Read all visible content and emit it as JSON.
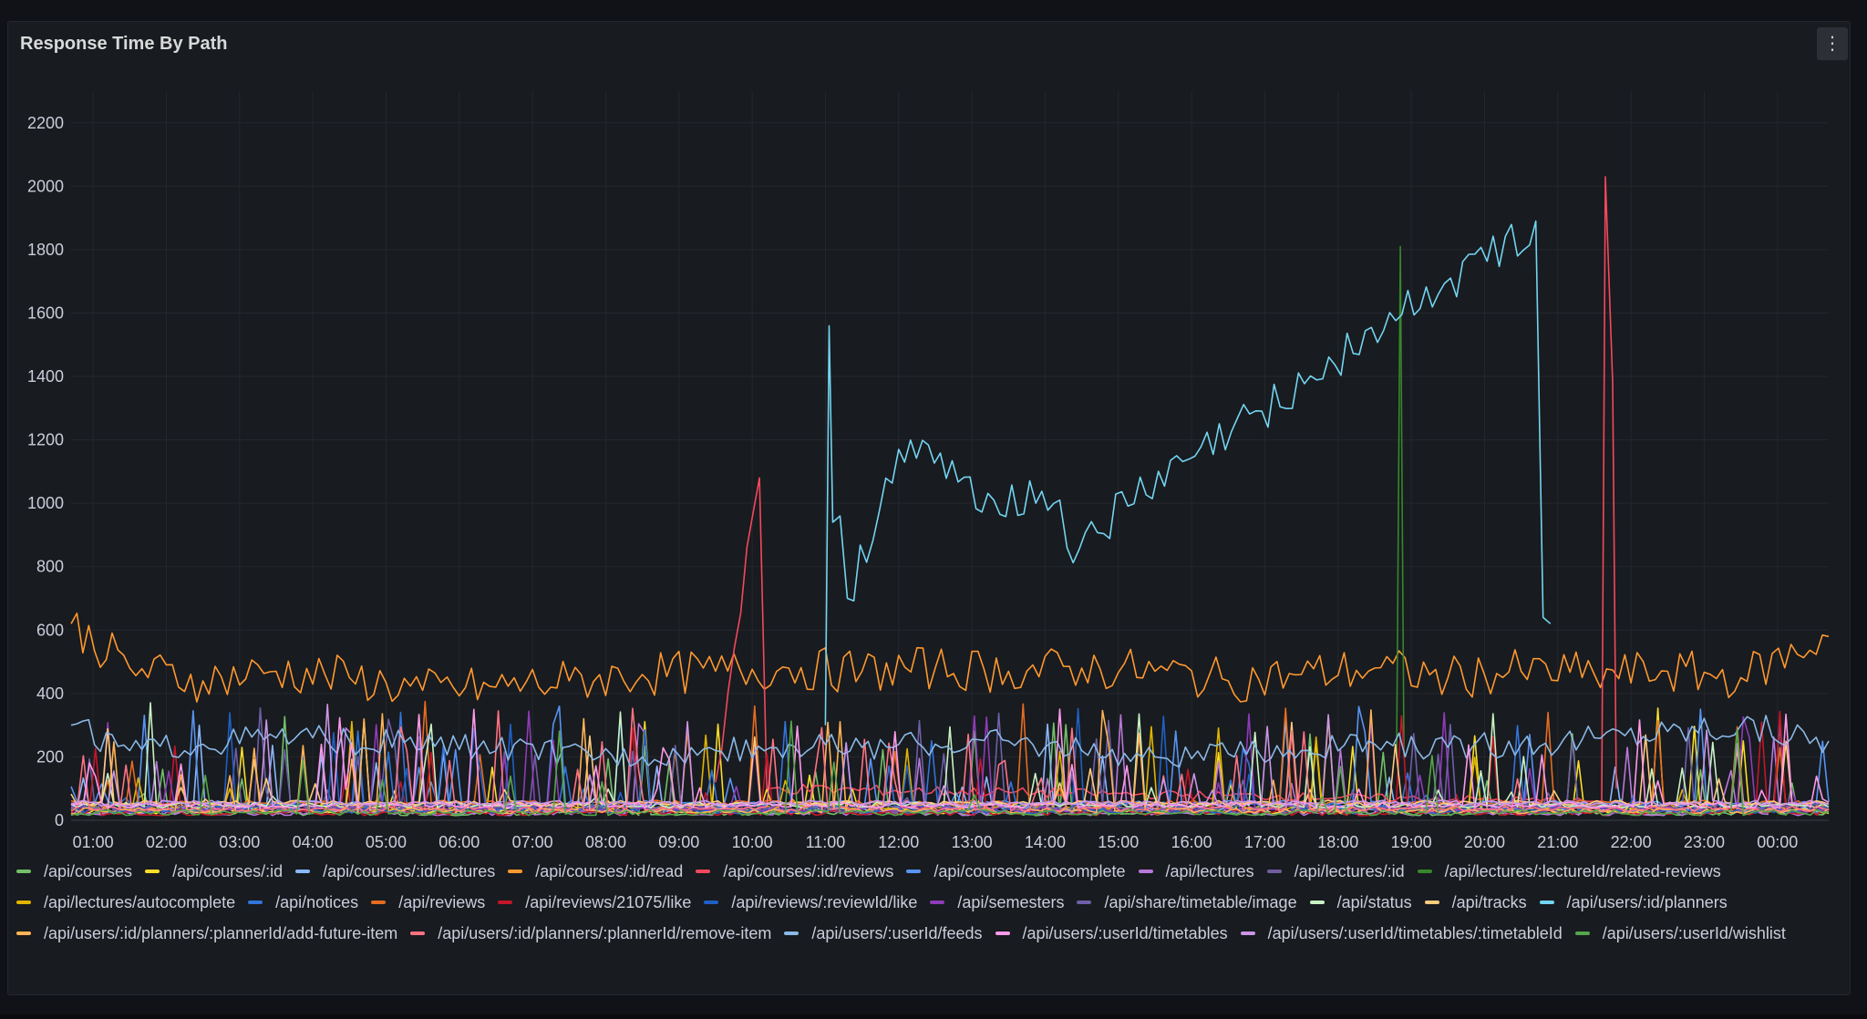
{
  "panel": {
    "title": "Response Time By Path",
    "menu_icon": "kebab-menu-icon",
    "menu_glyph": "⋮"
  },
  "colors": {
    "background": "#111217",
    "panel": "#181b1f",
    "grid": "#24272e",
    "text": "#ccccdc"
  },
  "chart_data": {
    "type": "line",
    "title": "Response Time By Path",
    "xlabel": "",
    "ylabel": "",
    "ylim": [
      0,
      2300
    ],
    "yticks": [
      0,
      200,
      400,
      600,
      800,
      1000,
      1200,
      1400,
      1600,
      1800,
      2000,
      2200
    ],
    "x_range_hours": [
      0.7,
      24.7
    ],
    "xticks": [
      "01:00",
      "02:00",
      "03:00",
      "04:00",
      "05:00",
      "06:00",
      "07:00",
      "08:00",
      "09:00",
      "10:00",
      "11:00",
      "12:00",
      "13:00",
      "14:00",
      "15:00",
      "16:00",
      "17:00",
      "18:00",
      "19:00",
      "20:00",
      "21:00",
      "22:00",
      "23:00",
      "00:00"
    ],
    "grid": true,
    "legend_position": "bottom",
    "series": [
      {
        "name": "/api/courses",
        "color": "#73bf69"
      },
      {
        "name": "/api/courses/:id",
        "color": "#fade2a"
      },
      {
        "name": "/api/courses/:id/lectures",
        "color": "#8ab8ff"
      },
      {
        "name": "/api/courses/:id/read",
        "color": "#ff9830",
        "values": [
          [
            0.7,
            620
          ],
          [
            1.5,
            480
          ],
          [
            2.5,
            440
          ],
          [
            3.5,
            470
          ],
          [
            4.5,
            450
          ],
          [
            5.5,
            410
          ],
          [
            6.5,
            420
          ],
          [
            7.5,
            440
          ],
          [
            8.5,
            460
          ],
          [
            9.5,
            470
          ],
          [
            10.5,
            480
          ],
          [
            11.5,
            470
          ],
          [
            12.5,
            480
          ],
          [
            13.5,
            470
          ],
          [
            14.5,
            480
          ],
          [
            15.5,
            470
          ],
          [
            16.5,
            440
          ],
          [
            17.5,
            460
          ],
          [
            18.5,
            480
          ],
          [
            19.5,
            450
          ],
          [
            20.5,
            470
          ],
          [
            21.5,
            460
          ],
          [
            22.5,
            470
          ],
          [
            23.5,
            450
          ],
          [
            24.7,
            580
          ]
        ]
      },
      {
        "name": "/api/courses/:id/reviews",
        "color": "#f2495c",
        "values": [
          [
            9.5,
            120
          ],
          [
            10.1,
            1080
          ],
          [
            10.2,
            100
          ],
          [
            21.6,
            60
          ],
          [
            21.65,
            2030
          ],
          [
            21.75,
            1380
          ],
          [
            21.8,
            100
          ]
        ]
      },
      {
        "name": "/api/courses/autocomplete",
        "color": "#5794f2"
      },
      {
        "name": "/api/lectures",
        "color": "#b877d9"
      },
      {
        "name": "/api/lectures/:id",
        "color": "#705da0"
      },
      {
        "name": "/api/lectures/:lectureId/related-reviews",
        "color": "#37872d",
        "values": [
          [
            18.8,
            200
          ],
          [
            18.85,
            1810
          ],
          [
            18.9,
            200
          ]
        ]
      },
      {
        "name": "/api/lectures/autocomplete",
        "color": "#e0b400"
      },
      {
        "name": "/api/notices",
        "color": "#3274d9"
      },
      {
        "name": "/api/reviews",
        "color": "#e66c21"
      },
      {
        "name": "/api/reviews/21075/like",
        "color": "#c4162a"
      },
      {
        "name": "/api/reviews/:reviewId/like",
        "color": "#1f60c4"
      },
      {
        "name": "/api/semesters",
        "color": "#8f3bb8"
      },
      {
        "name": "/api/share/timetable/image",
        "color": "#6e5fa8"
      },
      {
        "name": "/api/status",
        "color": "#c8f2c2"
      },
      {
        "name": "/api/tracks",
        "color": "#ffcb7d"
      },
      {
        "name": "/api/users/:id/planners",
        "color": "#73d4f2",
        "values": [
          [
            11.0,
            300
          ],
          [
            11.05,
            1560
          ],
          [
            11.1,
            940
          ],
          [
            11.2,
            960
          ],
          [
            11.3,
            700
          ],
          [
            12.0,
            1170
          ],
          [
            13.3,
            1010
          ],
          [
            14.2,
            1010
          ],
          [
            14.3,
            860
          ],
          [
            20.7,
            1890
          ],
          [
            20.8,
            640
          ],
          [
            20.9,
            620
          ]
        ]
      },
      {
        "name": "/api/users/:id/planners/:plannerId/add-future-item",
        "color": "#ffb357"
      },
      {
        "name": "/api/users/:id/planners/:plannerId/remove-item",
        "color": "#ff7383"
      },
      {
        "name": "/api/users/:userId/feeds",
        "color": "#8ab8e6",
        "values": [
          [
            0.7,
            300
          ],
          [
            1.5,
            220
          ],
          [
            2.5,
            240
          ],
          [
            3.5,
            260
          ],
          [
            4.5,
            250
          ],
          [
            8.5,
            200
          ],
          [
            9.5,
            220
          ],
          [
            10.5,
            240
          ],
          [
            11.5,
            230
          ],
          [
            12.5,
            240
          ],
          [
            13.5,
            250
          ],
          [
            14.5,
            220
          ],
          [
            15.5,
            200
          ],
          [
            16.5,
            210
          ],
          [
            17.5,
            220
          ],
          [
            18.5,
            240
          ],
          [
            19.5,
            230
          ],
          [
            20.5,
            240
          ],
          [
            21.5,
            260
          ],
          [
            22.5,
            280
          ],
          [
            23.5,
            300
          ],
          [
            24.7,
            250
          ]
        ]
      },
      {
        "name": "/api/users/:userId/timetables",
        "color": "#ff99ea"
      },
      {
        "name": "/api/users/:userId/timetables/:timetableId",
        "color": "#ca95e5"
      },
      {
        "name": "/api/users/:userId/wishlist",
        "color": "#56a64b"
      }
    ]
  }
}
